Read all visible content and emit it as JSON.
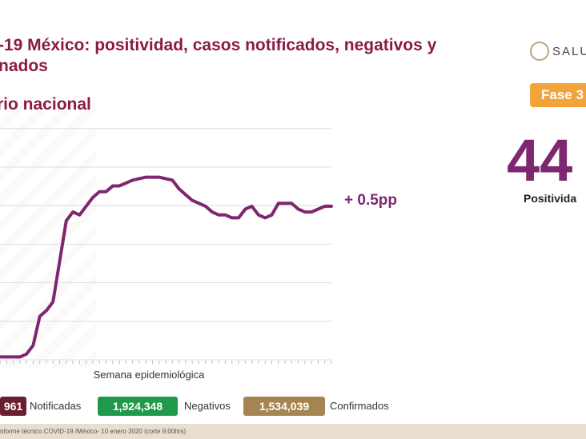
{
  "header": {
    "title": "-19 México: positividad, casos notificados, negativos y nados",
    "title_line1": "-19 México: positividad, casos notificados, negativos y",
    "title_line2": "nados",
    "subtitle": "rio nacional",
    "brand": "SALU",
    "phase": "Fase 3"
  },
  "kpi": {
    "value": "44",
    "label": "Positivida"
  },
  "chart_data": {
    "type": "line",
    "x_label": "Semana epidemiológica",
    "y_range": [
      0,
      8
    ],
    "grid": true,
    "annotation": "+ 0.5pp",
    "series": [
      {
        "color": "#7e2771",
        "values": [
          0.1,
          0.1,
          0.1,
          0.1,
          0.2,
          0.5,
          1.5,
          1.7,
          2.0,
          3.4,
          4.8,
          5.1,
          5.0,
          5.3,
          5.6,
          5.8,
          5.8,
          6.0,
          6.0,
          6.1,
          6.2,
          6.25,
          6.3,
          6.3,
          6.3,
          6.25,
          6.2,
          5.9,
          5.7,
          5.5,
          5.4,
          5.3,
          5.1,
          5.0,
          5.0,
          4.9,
          4.9,
          5.2,
          5.3,
          5.0,
          4.9,
          5.0,
          5.4,
          5.4,
          5.4,
          5.2,
          5.1,
          5.1,
          5.2,
          5.3,
          5.3
        ]
      }
    ]
  },
  "summary": {
    "notificadas_value": "961",
    "notificadas_label": "Notificadas",
    "negativos_value": "1,924,348",
    "negativos_label": "Negativos",
    "confirmados_value": "1,534,039",
    "confirmados_label": "Confirmados",
    "colors": {
      "notificadas": "#6b1f2e",
      "negativos": "#1f9a4a",
      "confirmados": "#a58451"
    }
  },
  "footer": {
    "text": "nforme técnico.COVID-19 /México- 10 enero 2020 (corte 9:00hrs)"
  }
}
